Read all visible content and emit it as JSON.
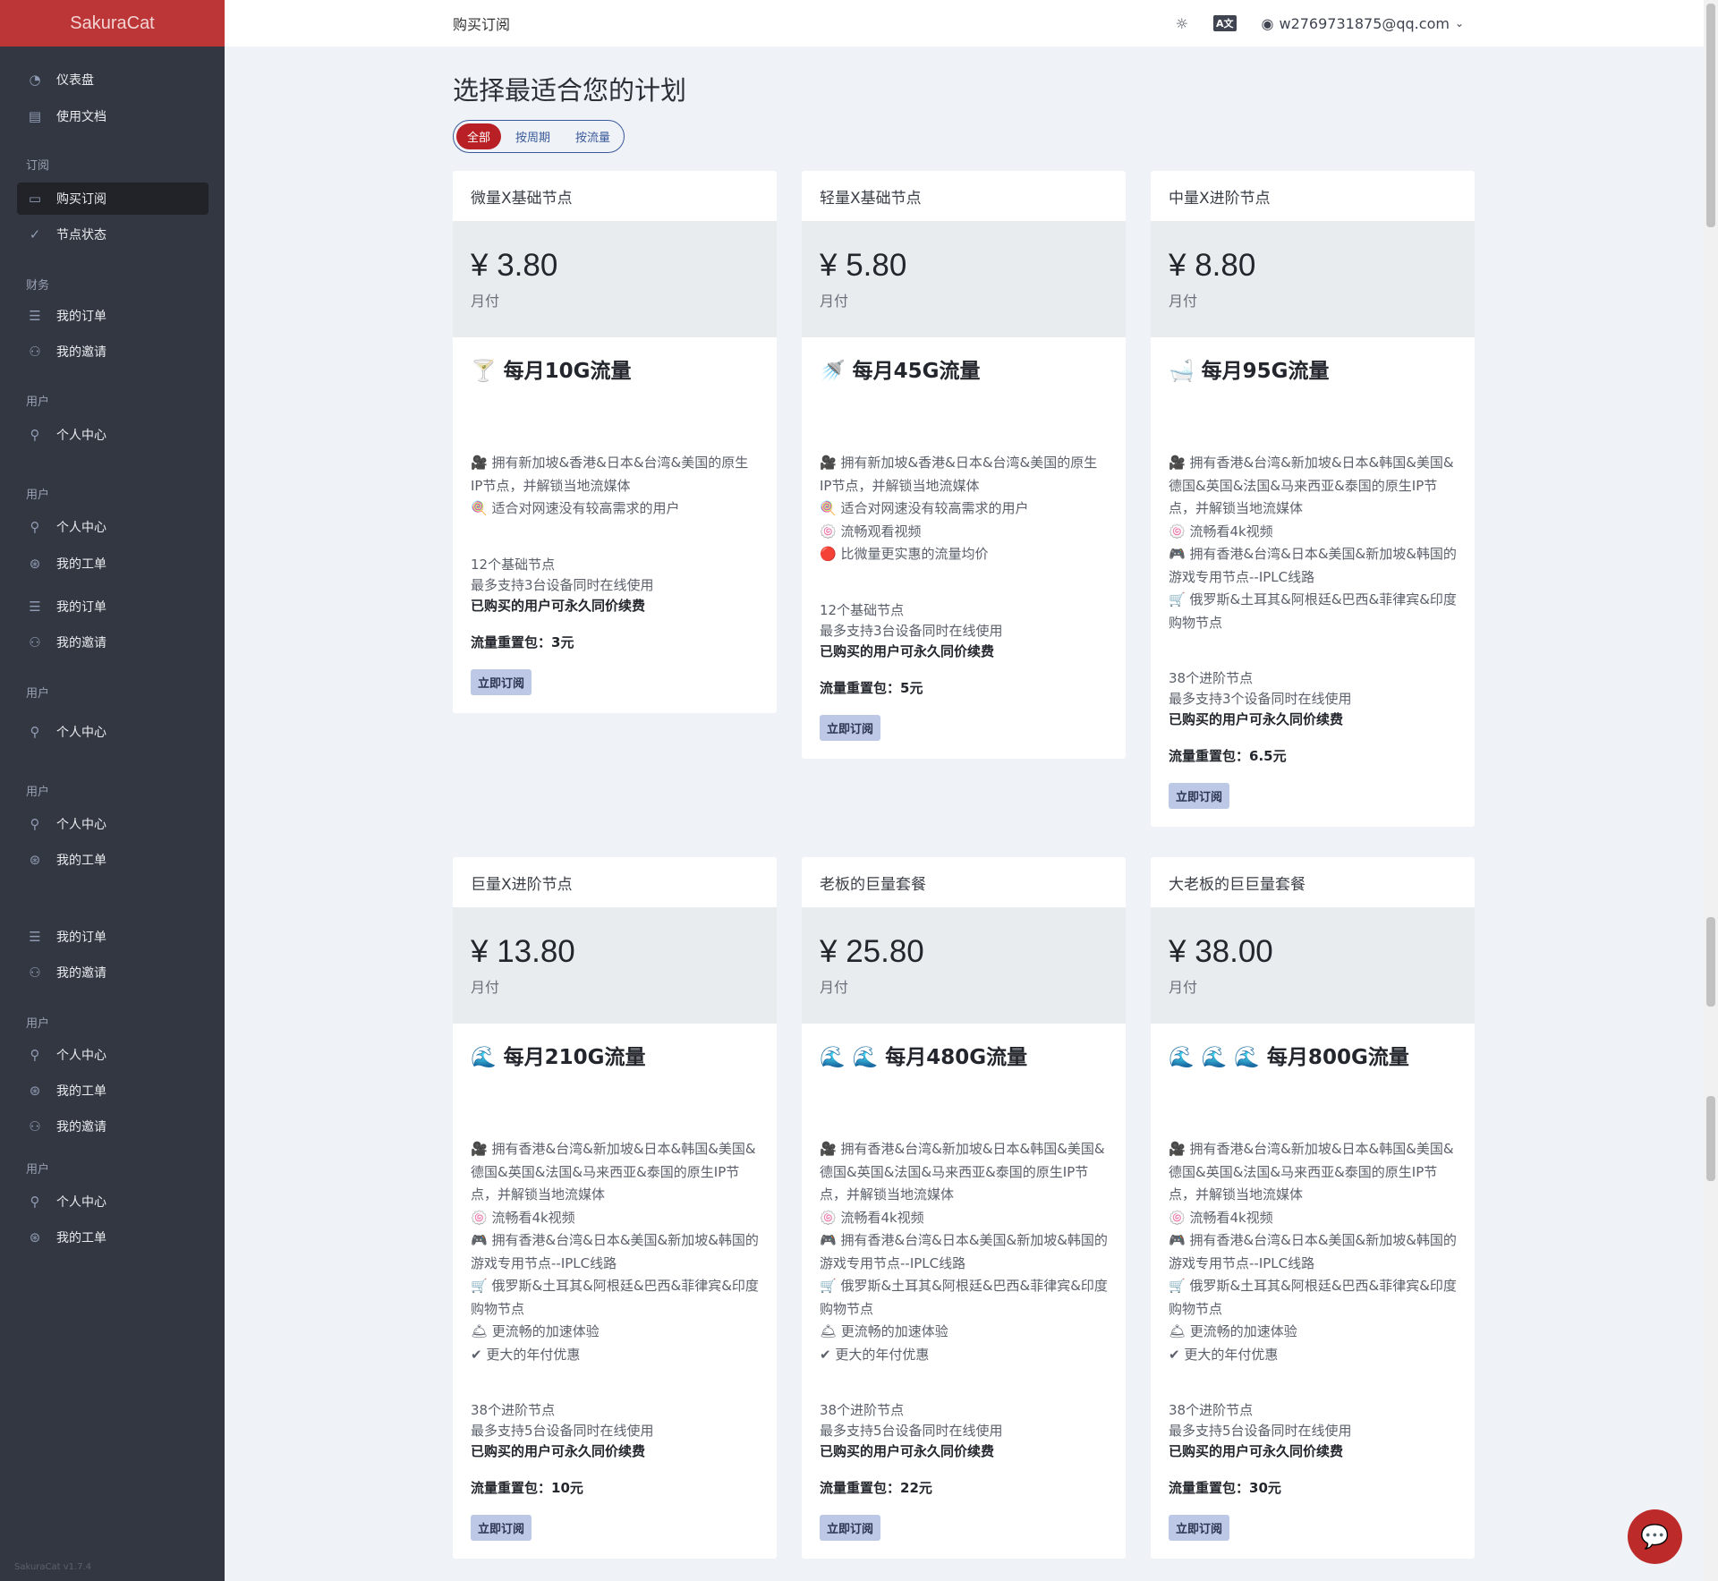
{
  "brand": "SakuraCat",
  "version": "SakuraCat v1.7.4",
  "sidebar": [
    {
      "type": "item",
      "label": "仪表盘",
      "icon": "dashboard-icon"
    },
    {
      "type": "item",
      "label": "使用文档",
      "icon": "book-icon"
    },
    {
      "type": "label",
      "label": "订阅"
    },
    {
      "type": "item",
      "label": "购买订阅",
      "icon": "clipboard-icon",
      "active": true
    },
    {
      "type": "item",
      "label": "节点状态",
      "icon": "check-circle-icon"
    },
    {
      "type": "label",
      "label": "财务"
    },
    {
      "type": "item",
      "label": "我的订单",
      "icon": "list-icon"
    },
    {
      "type": "item",
      "label": "我的邀请",
      "icon": "users-icon"
    },
    {
      "type": "label",
      "label": "用户"
    },
    {
      "type": "item",
      "label": "个人中心",
      "icon": "user-icon"
    },
    {
      "type": "label",
      "label": "用户"
    },
    {
      "type": "item",
      "label": "个人中心",
      "icon": "user-icon"
    },
    {
      "type": "item",
      "label": "我的工单",
      "icon": "lifebuoy-icon"
    },
    {
      "type": "item",
      "label": "我的订单",
      "icon": "list-icon"
    },
    {
      "type": "item",
      "label": "我的邀请",
      "icon": "users-icon"
    },
    {
      "type": "label",
      "label": "用户"
    },
    {
      "type": "item",
      "label": "个人中心",
      "icon": "user-icon"
    },
    {
      "type": "label",
      "label": "用户"
    },
    {
      "type": "item",
      "label": "个人中心",
      "icon": "user-icon"
    },
    {
      "type": "item",
      "label": "我的工单",
      "icon": "lifebuoy-icon"
    },
    {
      "type": "item",
      "label": "我的订单",
      "icon": "list-icon"
    },
    {
      "type": "item",
      "label": "我的邀请",
      "icon": "users-icon"
    },
    {
      "type": "label",
      "label": "用户"
    },
    {
      "type": "item",
      "label": "个人中心",
      "icon": "user-icon"
    },
    {
      "type": "item",
      "label": "我的工单",
      "icon": "lifebuoy-icon"
    },
    {
      "type": "item",
      "label": "我的邀请",
      "icon": "users-icon"
    },
    {
      "type": "label",
      "label": "用户"
    },
    {
      "type": "item",
      "label": "个人中心",
      "icon": "user-icon"
    },
    {
      "type": "item",
      "label": "我的工单",
      "icon": "lifebuoy-icon"
    }
  ],
  "header": {
    "title": "购买订阅",
    "user": "w2769731875@qq.com",
    "icons": [
      "theme-icon",
      "translate-icon",
      "user-circle-icon",
      "chevron-down-icon"
    ]
  },
  "main": {
    "title": "选择最适合您的计划",
    "tabs": [
      {
        "label": "全部",
        "active": true
      },
      {
        "label": "按周期"
      },
      {
        "label": "按流量"
      }
    ],
    "plans": [
      {
        "name": "微量X基础节点",
        "price": "¥ 3.80",
        "period": "月付",
        "headline": "🍸 每月10G流量",
        "features": [
          "🎥 拥有新加坡&香港&日本&台湾&美国的原生IP节点，并解锁当地流媒体",
          "🍭 适合对网速没有较高需求的用户"
        ],
        "nodes": "12个基础节点",
        "devices": "最多支持3台设备同时在线使用",
        "renew": "已购买的用户可永久同价续费",
        "reset": "流量重置包：3元",
        "button": "立即订阅"
      },
      {
        "name": "轻量X基础节点",
        "price": "¥ 5.80",
        "period": "月付",
        "headline": "🚿 每月45G流量",
        "features": [
          "🎥 拥有新加坡&香港&日本&台湾&美国的原生IP节点，并解锁当地流媒体",
          "🍭 适合对网速没有较高需求的用户",
          "🍥 流畅观看视频",
          "🔴 比微量更实惠的流量均价"
        ],
        "nodes": "12个基础节点",
        "devices": "最多支持3台设备同时在线使用",
        "renew": "已购买的用户可永久同价续费",
        "reset": "流量重置包：5元",
        "button": "立即订阅"
      },
      {
        "name": "中量X进阶节点",
        "price": "¥ 8.80",
        "period": "月付",
        "headline": "🛁 每月95G流量",
        "features": [
          "🎥 拥有香港&台湾&新加坡&日本&韩国&美国&德国&英国&法国&马来西亚&泰国的原生IP节点，并解锁当地流媒体",
          "🍥 流畅看4k视频",
          "🎮 拥有香港&台湾&日本&美国&新加坡&韩国的游戏专用节点--IPLC线路",
          "🛒 俄罗斯&土耳其&阿根廷&巴西&菲律宾&印度购物节点"
        ],
        "nodes": "38个进阶节点",
        "devices": "最多支持3个设备同时在线使用",
        "renew": "已购买的用户可永久同价续费",
        "reset": "流量重置包：6.5元",
        "button": "立即订阅"
      },
      {
        "name": "巨量X进阶节点",
        "price": "¥ 13.80",
        "period": "月付",
        "headline": "🌊 每月210G流量",
        "features": [
          "🎥 拥有香港&台湾&新加坡&日本&韩国&美国&德国&英国&法国&马来西亚&泰国的原生IP节点，并解锁当地流媒体",
          "🍥 流畅看4k视频",
          "🎮 拥有香港&台湾&日本&美国&新加坡&韩国的游戏专用节点--IPLC线路",
          "🛒 俄罗斯&土耳其&阿根廷&巴西&菲律宾&印度购物节点",
          "🛎 更流畅的加速体验",
          "✔ 更大的年付优惠"
        ],
        "nodes": "38个进阶节点",
        "devices": "最多支持5台设备同时在线使用",
        "renew": "已购买的用户可永久同价续费",
        "reset": "流量重置包：10元",
        "button": "立即订阅"
      },
      {
        "name": "老板的巨量套餐",
        "price": "¥ 25.80",
        "period": "月付",
        "headline": "🌊 🌊 每月480G流量",
        "features": [
          "🎥 拥有香港&台湾&新加坡&日本&韩国&美国&德国&英国&法国&马来西亚&泰国的原生IP节点，并解锁当地流媒体",
          "🍥 流畅看4k视频",
          "🎮 拥有香港&台湾&日本&美国&新加坡&韩国的游戏专用节点--IPLC线路",
          "🛒 俄罗斯&土耳其&阿根廷&巴西&菲律宾&印度购物节点",
          "🛎 更流畅的加速体验",
          "✔ 更大的年付优惠"
        ],
        "nodes": "38个进阶节点",
        "devices": "最多支持5台设备同时在线使用",
        "renew": "已购买的用户可永久同价续费",
        "reset": "流量重置包：22元",
        "button": "立即订阅"
      },
      {
        "name": "大老板的巨巨量套餐",
        "price": "¥ 38.00",
        "period": "月付",
        "headline": "🌊 🌊 🌊 每月800G流量",
        "features": [
          "🎥 拥有香港&台湾&新加坡&日本&韩国&美国&德国&英国&法国&马来西亚&泰国的原生IP节点，并解锁当地流媒体",
          "🍥 流畅看4k视频",
          "🎮 拥有香港&台湾&日本&美国&新加坡&韩国的游戏专用节点--IPLC线路",
          "🛒 俄罗斯&土耳其&阿根廷&巴西&菲律宾&印度购物节点",
          "🛎 更流畅的加速体验",
          "✔ 更大的年付优惠"
        ],
        "nodes": "38个进阶节点",
        "devices": "最多支持5台设备同时在线使用",
        "renew": "已购买的用户可永久同价续费",
        "reset": "流量重置包：30元",
        "button": "立即订阅"
      }
    ]
  },
  "chat": {
    "icon": "chat-icon"
  },
  "colors": {
    "brand": "#bd3637",
    "sidebar": "#333741",
    "accent": "#b82025",
    "button": "#bcc8e6"
  }
}
